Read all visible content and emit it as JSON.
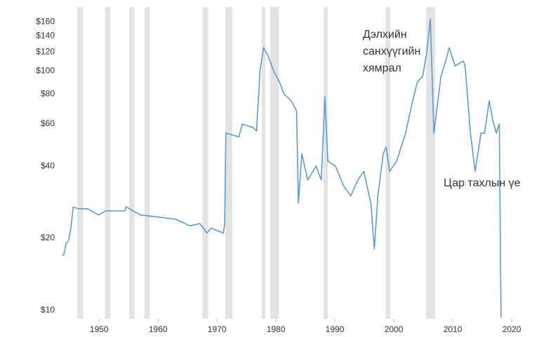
{
  "chart_data": {
    "type": "line",
    "log_scale": true,
    "grid": false,
    "xlim": [
      1943.3,
      2021.9
    ],
    "ylim": [
      9.2,
      185
    ],
    "xticks": [
      1950,
      1960,
      1970,
      1980,
      1990,
      2000,
      2010,
      2020
    ],
    "yticks": [
      {
        "value": 10,
        "label": "$10"
      },
      {
        "value": 20,
        "label": "$20"
      },
      {
        "value": 40,
        "label": "$40"
      },
      {
        "value": 60,
        "label": "$60"
      },
      {
        "value": 80,
        "label": "$80"
      },
      {
        "value": 100,
        "label": "$100"
      },
      {
        "value": 120,
        "label": "$120"
      },
      {
        "value": 140,
        "label": "$140"
      },
      {
        "value": 160,
        "label": "$160"
      }
    ],
    "recession_color": "#e3e3e3",
    "recessions": [
      [
        1946.3,
        1947.3
      ],
      [
        1951.0,
        1951.9
      ],
      [
        1955.1,
        1956.0
      ],
      [
        1957.7,
        1958.6
      ],
      [
        1967.5,
        1968.5
      ],
      [
        1971.4,
        1972.6
      ],
      [
        1977.6,
        1978.2
      ],
      [
        1979.0,
        1980.5
      ],
      [
        1988.1,
        1988.8
      ],
      [
        1998.6,
        1999.4
      ],
      [
        2005.5,
        2007.0
      ]
    ],
    "series": [
      {
        "color": "#5b9bd5",
        "x": [
          1943.7,
          1944.0,
          1944.4,
          1944.8,
          1945.2,
          1945.6,
          1946.5,
          1948.1,
          1949.9,
          1951.1,
          1954.4,
          1954.6,
          1957.0,
          1963.0,
          1965.4,
          1967.1,
          1968.3,
          1969.0,
          1971.1,
          1971.3,
          1971.5,
          1973.7,
          1974.3,
          1976.1,
          1976.7,
          1977.3,
          1977.9,
          1978.7,
          1979.6,
          1980.6,
          1981.4,
          1982.6,
          1983.5,
          1983.8,
          1984.4,
          1985.4,
          1986.8,
          1987.7,
          1988.3,
          1988.8,
          1990.1,
          1991.5,
          1992.7,
          1993.9,
          1994.9,
          1996.1,
          1996.7,
          1997.3,
          1998.2,
          1998.7,
          1999.3,
          2000.5,
          2002.0,
          2003.2,
          2004.0,
          2004.9,
          2005.6,
          2006.2,
          2006.8,
          2008.0,
          2008.8,
          2009.4,
          2010.4,
          2011.8,
          2012.1,
          2013.0,
          2013.8,
          2014.8,
          2015.4,
          2016.2,
          2016.8,
          2017.4,
          2017.9,
          2018.2
        ],
        "values": [
          17,
          17,
          19,
          19.5,
          22,
          27,
          26.5,
          26.5,
          25,
          26,
          26,
          27,
          25,
          24,
          22.5,
          23,
          21,
          22,
          21,
          23,
          55,
          53,
          60,
          58,
          56,
          100,
          125,
          115,
          100,
          90,
          80,
          75,
          68,
          28,
          45,
          35,
          40,
          35,
          78,
          42,
          40,
          33,
          30,
          35,
          38,
          28,
          18,
          30,
          45,
          48,
          38,
          42,
          55,
          75,
          90,
          95,
          120,
          165,
          55,
          95,
          110,
          125,
          105,
          110,
          105,
          55,
          38,
          55,
          55,
          75,
          62,
          55,
          60,
          9.3
        ]
      }
    ],
    "annotations": [
      {
        "lines": [
          "Дэлхийн",
          "санхүүгийн",
          "хямрал"
        ]
      },
      {
        "lines": [
          "Цар тахлын үе"
        ]
      }
    ]
  }
}
